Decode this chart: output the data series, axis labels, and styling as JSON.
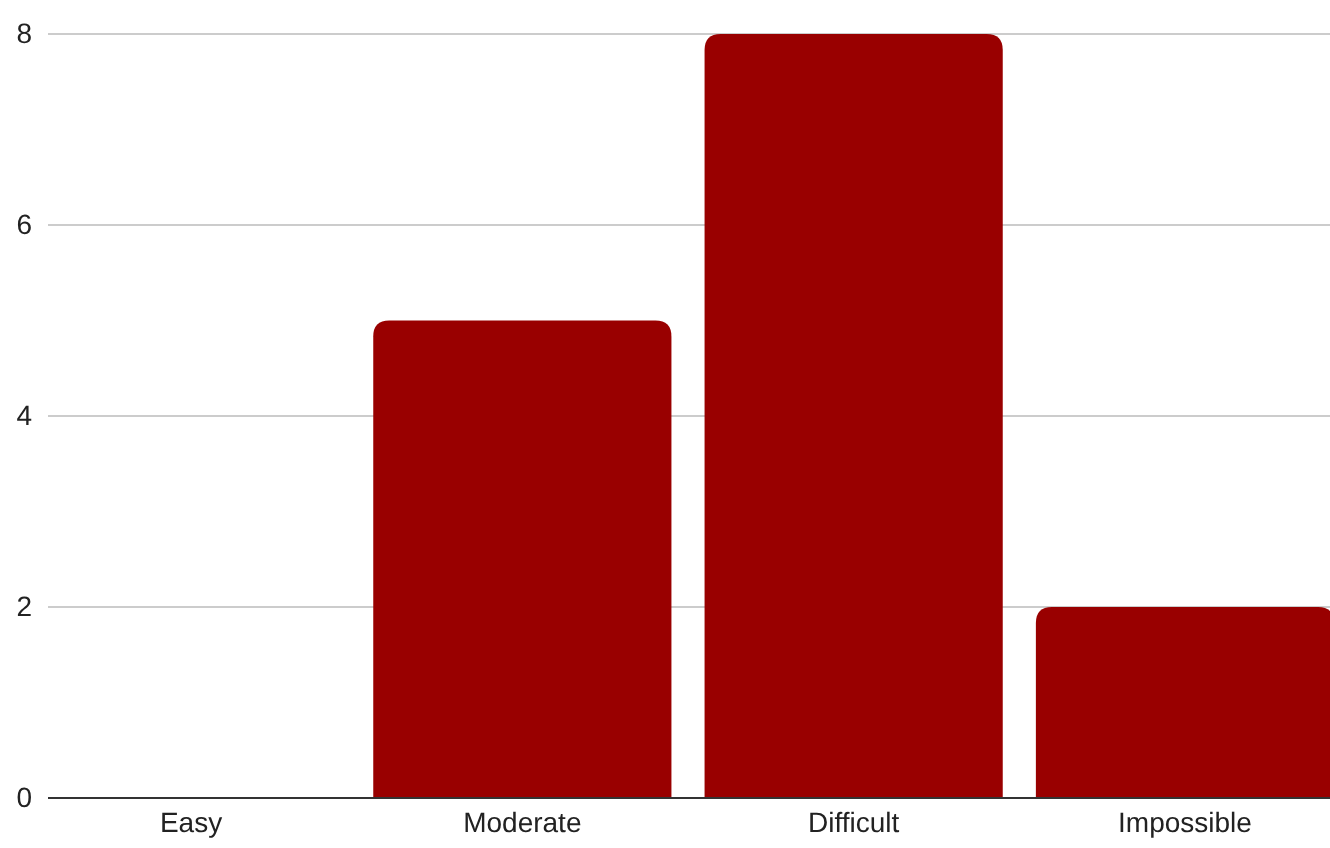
{
  "chart_data": {
    "type": "bar",
    "categories": [
      "Easy",
      "Moderate",
      "Difficult",
      "Impossible"
    ],
    "values": [
      0,
      5,
      8,
      2
    ],
    "color": "#990000",
    "ylim": [
      0,
      8
    ],
    "yticks": [
      0,
      2,
      4,
      6,
      8
    ],
    "grid": "y"
  }
}
